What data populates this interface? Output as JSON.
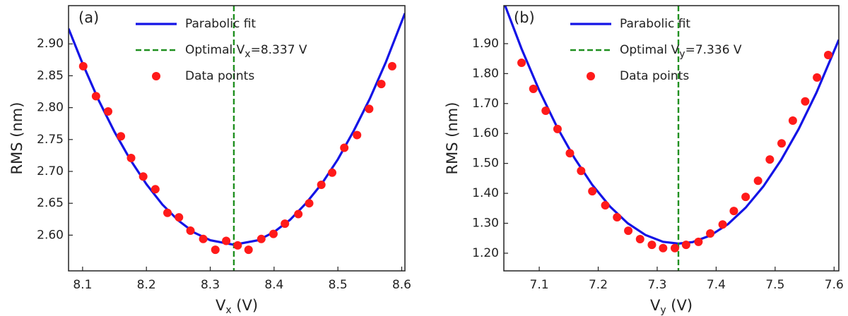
{
  "chart_data": [
    {
      "type": "scatter",
      "panel_label": "(a)",
      "ylabel": "RMS (nm)",
      "xlabel": {
        "main": "V",
        "sub": "x",
        "rest": " (V)"
      },
      "xlim": [
        8.078,
        8.605
      ],
      "ylim": [
        2.544,
        2.96
      ],
      "xticks": [
        8.1,
        8.2,
        8.3,
        8.4,
        8.5,
        8.6
      ],
      "yticks": [
        {
          "value": 2.6,
          "label": "2.60"
        },
        {
          "value": 2.65,
          "label": "2.65"
        },
        {
          "value": 2.7,
          "label": "2.70"
        },
        {
          "value": 2.75,
          "label": "2.75"
        },
        {
          "value": 2.8,
          "label": "2.80"
        },
        {
          "value": 2.85,
          "label": "2.85"
        },
        {
          "value": 2.9,
          "label": "2.90"
        }
      ],
      "legend": "upper center",
      "series": [
        {
          "name": "Parabolic fit",
          "kind": "line",
          "color": "#1414e6",
          "x": [
            8.078,
            8.1,
            8.125,
            8.15,
            8.175,
            8.2,
            8.225,
            8.25,
            8.275,
            8.3,
            8.337,
            8.375,
            8.4,
            8.425,
            8.45,
            8.475,
            8.5,
            8.525,
            8.55,
            8.575,
            8.605
          ],
          "values": [
            2.924,
            2.869,
            2.812,
            2.762,
            2.718,
            2.68,
            2.648,
            2.623,
            2.604,
            2.592,
            2.585,
            2.592,
            2.605,
            2.624,
            2.65,
            2.681,
            2.719,
            2.764,
            2.814,
            2.871,
            2.948
          ]
        },
        {
          "name": {
            "main": "Optimal V",
            "sub": "x",
            "rest": "=8.337 V"
          },
          "kind": "vline",
          "color": "#1f8f1f",
          "x": 8.337
        },
        {
          "name": "Data points",
          "kind": "scatter",
          "color": "#ff1a1a",
          "x": [
            8.101,
            8.121,
            8.14,
            8.16,
            8.176,
            8.195,
            8.214,
            8.233,
            8.251,
            8.269,
            8.289,
            8.308,
            8.325,
            8.343,
            8.36,
            8.38,
            8.399,
            8.417,
            8.438,
            8.455,
            8.474,
            8.491,
            8.51,
            8.53,
            8.549,
            8.568,
            8.585
          ],
          "values": [
            2.865,
            2.818,
            2.794,
            2.755,
            2.721,
            2.692,
            2.672,
            2.635,
            2.628,
            2.607,
            2.594,
            2.577,
            2.591,
            2.584,
            2.577,
            2.594,
            2.602,
            2.618,
            2.633,
            2.65,
            2.679,
            2.698,
            2.737,
            2.757,
            2.798,
            2.837,
            2.865
          ]
        }
      ]
    },
    {
      "type": "scatter",
      "panel_label": "(b)",
      "ylabel": "RMS (nm)",
      "xlabel": {
        "main": "V",
        "sub": "y",
        "rest": " (V)"
      },
      "xlim": [
        7.04,
        7.608
      ],
      "ylim": [
        1.141,
        2.027
      ],
      "xticks": [
        7.1,
        7.2,
        7.3,
        7.4,
        7.5,
        7.6
      ],
      "yticks": [
        {
          "value": 1.2,
          "label": "1.20"
        },
        {
          "value": 1.3,
          "label": "1.30"
        },
        {
          "value": 1.4,
          "label": "1.40"
        },
        {
          "value": 1.5,
          "label": "1.50"
        },
        {
          "value": 1.6,
          "label": "1.60"
        },
        {
          "value": 1.7,
          "label": "1.70"
        },
        {
          "value": 1.8,
          "label": "1.80"
        },
        {
          "value": 1.9,
          "label": "1.90"
        }
      ],
      "legend": "upper center",
      "series": [
        {
          "name": "Parabolic fit",
          "kind": "line",
          "color": "#1414e6",
          "x": [
            7.04,
            7.07,
            7.1,
            7.13,
            7.16,
            7.19,
            7.22,
            7.25,
            7.28,
            7.31,
            7.336,
            7.36,
            7.39,
            7.42,
            7.45,
            7.48,
            7.51,
            7.54,
            7.57,
            7.608
          ],
          "values": [
            2.038,
            1.883,
            1.744,
            1.622,
            1.517,
            1.428,
            1.356,
            1.3,
            1.261,
            1.238,
            1.232,
            1.237,
            1.259,
            1.297,
            1.352,
            1.423,
            1.511,
            1.615,
            1.736,
            1.913
          ]
        },
        {
          "name": {
            "main": "Optimal V",
            "sub": "y",
            "rest": "=7.336 V"
          },
          "kind": "vline",
          "color": "#1f8f1f",
          "x": 7.336
        },
        {
          "name": "Data points",
          "kind": "scatter",
          "color": "#ff1a1a",
          "x": [
            7.07,
            7.09,
            7.111,
            7.131,
            7.152,
            7.171,
            7.19,
            7.212,
            7.232,
            7.251,
            7.271,
            7.291,
            7.31,
            7.33,
            7.349,
            7.37,
            7.39,
            7.411,
            7.43,
            7.45,
            7.471,
            7.491,
            7.511,
            7.53,
            7.551,
            7.571,
            7.59
          ],
          "values": [
            1.836,
            1.749,
            1.676,
            1.615,
            1.534,
            1.475,
            1.407,
            1.36,
            1.32,
            1.275,
            1.247,
            1.228,
            1.217,
            1.217,
            1.228,
            1.238,
            1.266,
            1.296,
            1.341,
            1.388,
            1.442,
            1.513,
            1.567,
            1.643,
            1.707,
            1.787,
            1.862
          ]
        }
      ]
    }
  ]
}
